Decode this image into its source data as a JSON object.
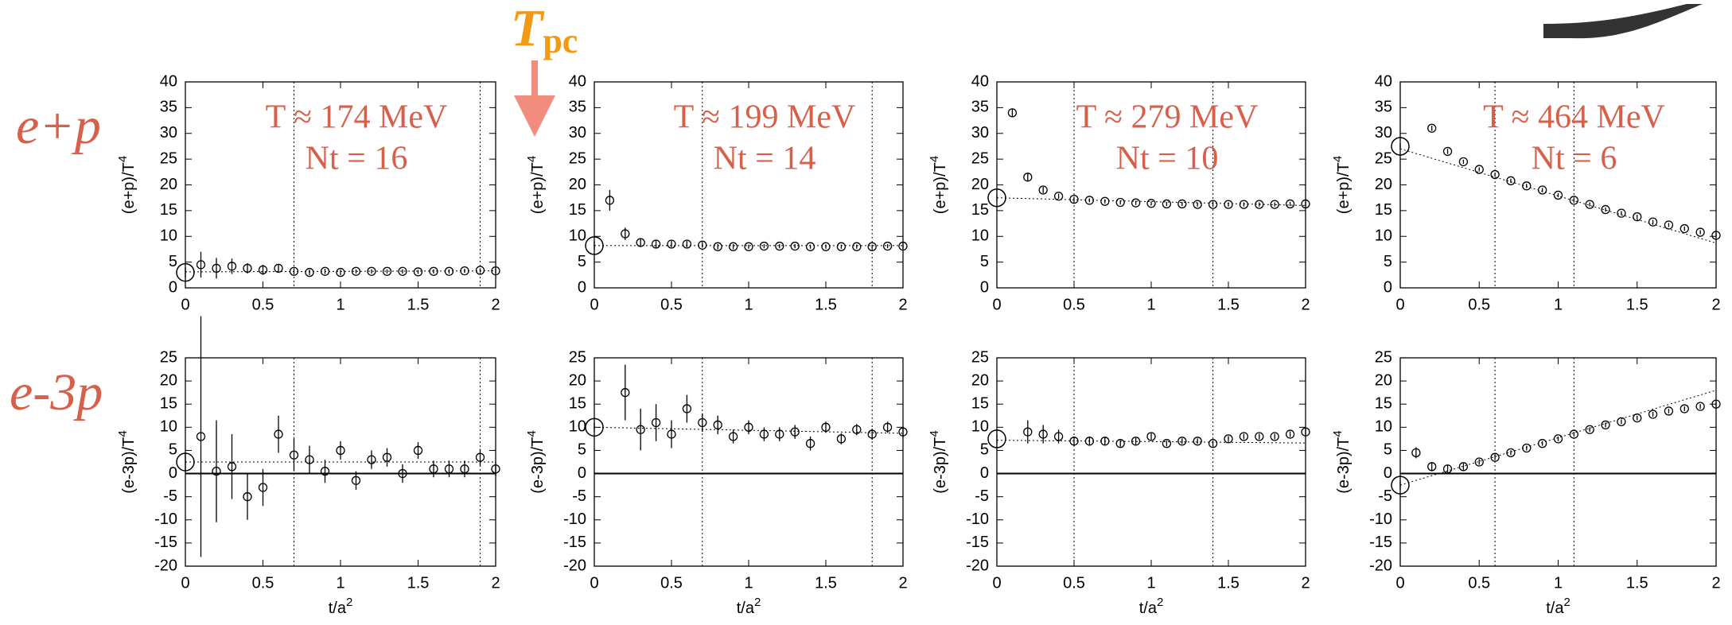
{
  "row_labels": [
    "e+p",
    "e-3p"
  ],
  "pointer": {
    "symbol": "T",
    "subscript": "pc"
  },
  "chart_data": [
    {
      "type": "scatter",
      "annotation": [
        "T ≈ 174 MeV",
        "Nt = 16"
      ],
      "ylabel": "(e+p)/T",
      "ylabel_sup": "4",
      "xlim": [
        0,
        2
      ],
      "xticks": [
        0,
        0.5,
        1,
        1.5,
        2
      ],
      "ylim": [
        0,
        40
      ],
      "yticks": [
        0,
        5,
        10,
        15,
        20,
        25,
        30,
        35,
        40
      ],
      "x": [
        0.1,
        0.2,
        0.3,
        0.4,
        0.5,
        0.6,
        0.7,
        0.8,
        0.9,
        1.0,
        1.1,
        1.2,
        1.3,
        1.4,
        1.5,
        1.6,
        1.7,
        1.8,
        1.9,
        2.0
      ],
      "values": [
        4.5,
        3.8,
        4.2,
        3.8,
        3.5,
        3.8,
        3.2,
        3.0,
        3.2,
        3.0,
        3.2,
        3.2,
        3.2,
        3.2,
        3.1,
        3.2,
        3.2,
        3.3,
        3.4,
        3.3
      ],
      "errors": [
        2.5,
        2,
        1.5,
        1,
        1,
        0.8,
        0.6,
        0.5,
        0.5,
        0.5,
        0.4,
        0.4,
        0.4,
        0.4,
        0.4,
        0.4,
        0.4,
        0.4,
        0.4,
        0.4
      ],
      "continuum": {
        "x": 0,
        "value": 3,
        "error": 1
      },
      "fit": {
        "x": [
          0,
          2
        ],
        "values": [
          3.1,
          3.3
        ]
      },
      "fit_range": [
        0.7,
        1.9
      ],
      "zero_line": false
    },
    {
      "type": "scatter",
      "annotation": [
        "T ≈ 199 MeV",
        "Nt = 14"
      ],
      "ylabel": "(e+p)/T",
      "ylabel_sup": "4",
      "xlim": [
        0,
        2
      ],
      "xticks": [
        0,
        0.5,
        1,
        1.5,
        2
      ],
      "ylim": [
        0,
        40
      ],
      "yticks": [
        0,
        5,
        10,
        15,
        20,
        25,
        30,
        35,
        40
      ],
      "x": [
        0.1,
        0.2,
        0.3,
        0.4,
        0.5,
        0.6,
        0.7,
        0.8,
        0.9,
        1.0,
        1.1,
        1.2,
        1.3,
        1.4,
        1.5,
        1.6,
        1.7,
        1.8,
        1.9,
        2.0
      ],
      "values": [
        17,
        10.5,
        8.8,
        8.5,
        8.5,
        8.5,
        8.3,
        8.0,
        8.0,
        8.0,
        8.1,
        8.1,
        8.1,
        8.0,
        8.0,
        8.0,
        8.0,
        8.0,
        8.1,
        8.1
      ],
      "errors": [
        2,
        1.2,
        0.8,
        0.7,
        0.6,
        0.6,
        0.5,
        0.5,
        0.5,
        0.4,
        0.4,
        0.4,
        0.4,
        0.4,
        0.4,
        0.4,
        0.4,
        0.4,
        0.4,
        0.4
      ],
      "continuum": {
        "x": 0,
        "value": 8.2,
        "error": 0.8
      },
      "fit": {
        "x": [
          0,
          2
        ],
        "values": [
          8.2,
          8.2
        ]
      },
      "fit_range": [
        0.7,
        1.8
      ],
      "zero_line": false
    },
    {
      "type": "scatter",
      "annotation": [
        "T ≈ 279 MeV",
        "Nt = 10"
      ],
      "ylabel": "(e+p)/T",
      "ylabel_sup": "4",
      "xlim": [
        0,
        2
      ],
      "xticks": [
        0,
        0.5,
        1,
        1.5,
        2
      ],
      "ylim": [
        0,
        40
      ],
      "yticks": [
        0,
        5,
        10,
        15,
        20,
        25,
        30,
        35,
        40
      ],
      "x": [
        0.1,
        0.2,
        0.3,
        0.4,
        0.5,
        0.6,
        0.7,
        0.8,
        0.9,
        1.0,
        1.1,
        1.2,
        1.3,
        1.4,
        1.5,
        1.6,
        1.7,
        1.8,
        1.9,
        2.0
      ],
      "values": [
        34,
        21.5,
        19,
        17.8,
        17.2,
        17.0,
        16.8,
        16.6,
        16.5,
        16.4,
        16.3,
        16.3,
        16.2,
        16.2,
        16.2,
        16.2,
        16.2,
        16.2,
        16.3,
        16.3
      ],
      "errors": [
        0.8,
        0.7,
        0.6,
        0.5,
        0.5,
        0.4,
        0.4,
        0.4,
        0.4,
        0.4,
        0.4,
        0.4,
        0.4,
        0.4,
        0.4,
        0.4,
        0.4,
        0.4,
        0.4,
        0.4
      ],
      "continuum": {
        "x": 0,
        "value": 17.5,
        "error": 0.6
      },
      "fit": {
        "x": [
          0,
          2
        ],
        "values": [
          17.5,
          16.0
        ]
      },
      "fit_range": [
        0.5,
        1.4
      ],
      "zero_line": false
    },
    {
      "type": "scatter",
      "annotation": [
        "T ≈ 464 MeV",
        "Nt = 6"
      ],
      "ylabel": "(e+p)/T",
      "ylabel_sup": "4",
      "xlim": [
        0,
        2
      ],
      "xticks": [
        0,
        0.5,
        1,
        1.5,
        2
      ],
      "ylim": [
        0,
        40
      ],
      "yticks": [
        0,
        5,
        10,
        15,
        20,
        25,
        30,
        35,
        40
      ],
      "x": [
        0.2,
        0.3,
        0.4,
        0.5,
        0.6,
        0.7,
        0.8,
        0.9,
        1.0,
        1.1,
        1.2,
        1.3,
        1.4,
        1.5,
        1.6,
        1.7,
        1.8,
        1.9,
        2.0
      ],
      "values": [
        31,
        26.5,
        24.5,
        23,
        22,
        20.8,
        19.8,
        19,
        18,
        17,
        16.2,
        15.2,
        14.5,
        13.8,
        12.8,
        12.2,
        11.5,
        10.8,
        10.2
      ],
      "errors": [
        0.5,
        0.5,
        0.4,
        0.4,
        0.4,
        0.4,
        0.4,
        0.4,
        0.4,
        0.4,
        0.4,
        0.4,
        0.4,
        0.4,
        0.4,
        0.4,
        0.4,
        0.4,
        0.4
      ],
      "continuum": {
        "x": 0,
        "value": 27.5,
        "error": 0.6
      },
      "fit": {
        "x": [
          0,
          2
        ],
        "values": [
          27,
          8.7
        ]
      },
      "fit_range": [
        0.6,
        1.1
      ],
      "zero_line": false
    },
    {
      "type": "scatter",
      "ylabel": "(e-3p)/T",
      "ylabel_sup": "4",
      "xlabel": "t/a",
      "xlabel_sup": "2",
      "xlim": [
        0,
        2
      ],
      "xticks": [
        0,
        0.5,
        1,
        1.5,
        2
      ],
      "ylim": [
        -20,
        25
      ],
      "yticks": [
        -20,
        -15,
        -10,
        -5,
        0,
        5,
        10,
        15,
        20,
        25
      ],
      "x": [
        0.1,
        0.2,
        0.3,
        0.4,
        0.5,
        0.6,
        0.7,
        0.8,
        0.9,
        1.0,
        1.1,
        1.2,
        1.3,
        1.4,
        1.5,
        1.6,
        1.7,
        1.8,
        1.9,
        2.0
      ],
      "values": [
        8,
        0.5,
        1.5,
        -5,
        -3,
        8.5,
        4,
        3,
        0.5,
        5,
        -1.5,
        3,
        3.5,
        0,
        5,
        1,
        1,
        1,
        3.5,
        1
      ],
      "errors": [
        26,
        11,
        7,
        5,
        4,
        4,
        3.5,
        3,
        2.5,
        2,
        2,
        2,
        2,
        2,
        1.8,
        1.8,
        1.8,
        1.8,
        1.8,
        1.5
      ],
      "continuum": {
        "x": 0,
        "value": 2.5,
        "error": 2
      },
      "fit": {
        "x": [
          0,
          2
        ],
        "values": [
          2.5,
          2.5
        ]
      },
      "fit_range": [
        0.7,
        1.9
      ],
      "zero_line": true
    },
    {
      "type": "scatter",
      "ylabel": "(e-3p)/T",
      "ylabel_sup": "4",
      "xlabel": "t/a",
      "xlabel_sup": "2",
      "xlim": [
        0,
        2
      ],
      "xticks": [
        0,
        0.5,
        1,
        1.5,
        2
      ],
      "ylim": [
        -20,
        25
      ],
      "yticks": [
        -20,
        -15,
        -10,
        -5,
        0,
        5,
        10,
        15,
        20,
        25
      ],
      "x": [
        0.2,
        0.3,
        0.4,
        0.5,
        0.6,
        0.7,
        0.8,
        0.9,
        1.0,
        1.1,
        1.2,
        1.3,
        1.4,
        1.5,
        1.6,
        1.7,
        1.8,
        1.9,
        2.0
      ],
      "values": [
        17.5,
        9.5,
        11,
        8.5,
        14,
        11,
        10.5,
        8,
        10,
        8.5,
        8.5,
        9,
        6.5,
        10,
        7.5,
        9.5,
        8.5,
        10,
        9
      ],
      "errors": [
        6,
        4.5,
        4,
        3,
        3,
        2,
        2,
        1.5,
        1.5,
        1.5,
        1.5,
        1.5,
        1.5,
        1.2,
        1.2,
        1.2,
        1.2,
        1.2,
        1.2
      ],
      "continuum": {
        "x": 0,
        "value": 10,
        "error": 1
      },
      "fit": {
        "x": [
          0,
          2
        ],
        "values": [
          10,
          8.7
        ]
      },
      "fit_range": [
        0.7,
        1.8
      ],
      "zero_line": true
    },
    {
      "type": "scatter",
      "ylabel": "(e-3p)/T",
      "ylabel_sup": "4",
      "xlabel": "t/a",
      "xlabel_sup": "2",
      "xlim": [
        0,
        2
      ],
      "xticks": [
        0,
        0.5,
        1,
        1.5,
        2
      ],
      "ylim": [
        -20,
        25
      ],
      "yticks": [
        -20,
        -15,
        -10,
        -5,
        0,
        5,
        10,
        15,
        20,
        25
      ],
      "x": [
        0.2,
        0.3,
        0.4,
        0.5,
        0.6,
        0.7,
        0.8,
        0.9,
        1.0,
        1.1,
        1.2,
        1.3,
        1.4,
        1.5,
        1.6,
        1.7,
        1.8,
        1.9,
        2.0
      ],
      "values": [
        9,
        8.5,
        8,
        7,
        7,
        7,
        6.5,
        7,
        8,
        6.5,
        7,
        7,
        6.5,
        7.5,
        8,
        8,
        8,
        8.5,
        9
      ],
      "errors": [
        2.5,
        2,
        1.5,
        1,
        1,
        0.8,
        0.7,
        0.7,
        0.7,
        0.6,
        0.6,
        0.6,
        0.6,
        0.6,
        0.6,
        0.6,
        0.6,
        0.6,
        0.6
      ],
      "continuum": {
        "x": 0,
        "value": 7.5,
        "error": 1
      },
      "fit": {
        "x": [
          0,
          2
        ],
        "values": [
          7.2,
          6.6
        ]
      },
      "fit_range": [
        0.5,
        1.4
      ],
      "zero_line": true
    },
    {
      "type": "scatter",
      "ylabel": "(e-3p)/T",
      "ylabel_sup": "4",
      "xlabel": "t/a",
      "xlabel_sup": "2",
      "xlim": [
        0,
        2
      ],
      "xticks": [
        0,
        0.5,
        1,
        1.5,
        2
      ],
      "ylim": [
        -20,
        25
      ],
      "yticks": [
        -20,
        -15,
        -10,
        -5,
        0,
        5,
        10,
        15,
        20,
        25
      ],
      "x": [
        0.1,
        0.2,
        0.3,
        0.4,
        0.5,
        0.6,
        0.7,
        0.8,
        0.9,
        1.0,
        1.1,
        1.2,
        1.3,
        1.4,
        1.5,
        1.6,
        1.7,
        1.8,
        1.9,
        2.0
      ],
      "values": [
        4.5,
        1.5,
        1,
        1.5,
        2.5,
        3.5,
        4.5,
        5.5,
        6.5,
        7.5,
        8.5,
        9.5,
        10.5,
        11.2,
        12,
        12.8,
        13.5,
        14,
        14.5,
        15
      ],
      "errors": [
        1.2,
        1,
        0.8,
        0.7,
        0.6,
        0.6,
        0.5,
        0.5,
        0.5,
        0.5,
        0.5,
        0.5,
        0.5,
        0.5,
        0.5,
        0.5,
        0.5,
        0.5,
        0.5,
        0.5
      ],
      "continuum": {
        "x": 0,
        "value": -2.5,
        "error": 1
      },
      "fit": {
        "x": [
          0,
          2
        ],
        "values": [
          -2.5,
          18
        ]
      },
      "fit_range": [
        0.6,
        1.1
      ],
      "zero_line": true
    }
  ]
}
